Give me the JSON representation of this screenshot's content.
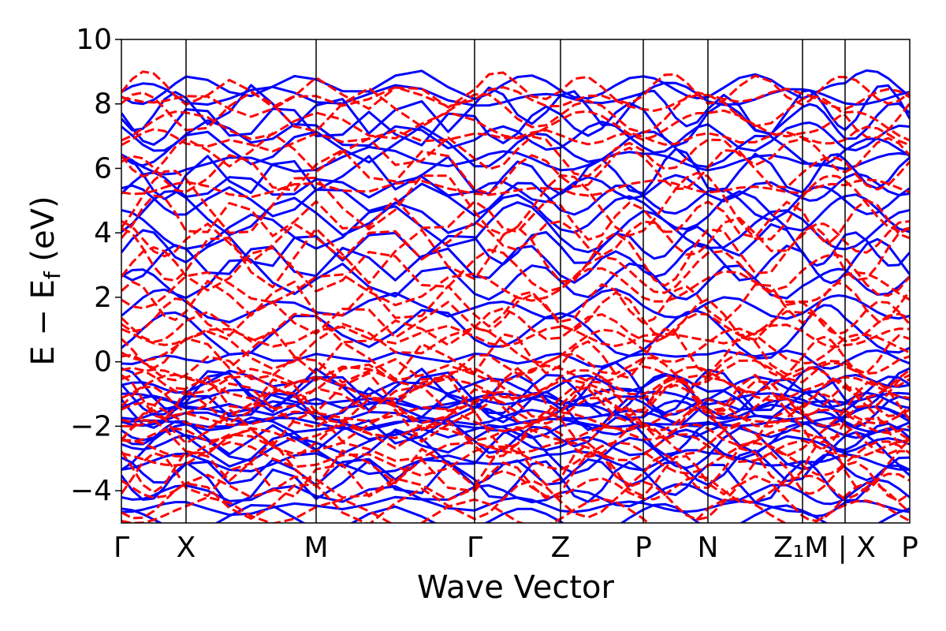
{
  "chart_data": {
    "type": "line",
    "xlabel": "Wave Vector",
    "ylabel": {
      "base": "E − E",
      "subscript": "f",
      "suffix": " (eV)"
    },
    "ylim": [
      -5,
      10
    ],
    "yticks": [
      -4,
      -2,
      0,
      2,
      4,
      6,
      8,
      10
    ],
    "ytick_labels": [
      "−4",
      "−2",
      "0",
      "2",
      "4",
      "6",
      "8",
      "10"
    ],
    "high_symmetry_points": [
      {
        "label": "Γ",
        "x": 0.0
      },
      {
        "label": "X",
        "x": 0.082
      },
      {
        "label": "M",
        "x": 0.247
      },
      {
        "label": "Γ",
        "x": 0.448
      },
      {
        "label": "Z",
        "x": 0.557
      },
      {
        "label": "P",
        "x": 0.662
      },
      {
        "label": "N",
        "x": 0.744
      },
      {
        "label": "Z₁M | X",
        "x": 0.892
      },
      {
        "label": "P",
        "x": 1.0
      }
    ],
    "segment_boundaries": [
      0.0,
      0.082,
      0.247,
      0.448,
      0.557,
      0.662,
      0.744,
      0.864,
      0.918,
      1.0
    ],
    "grid": false,
    "legend": "none",
    "series": [
      {
        "style": "solid",
        "color": "#0000ff",
        "bands": [
          -4.9,
          -4.5,
          -4.1,
          -3.7,
          -3.4,
          -3.1,
          -2.8,
          -2.55,
          -2.3,
          -2.1,
          -1.9,
          -1.75,
          -1.6,
          -1.45,
          -1.3,
          -1.15,
          -1.0,
          -0.85,
          -0.7,
          0.1,
          0.9,
          1.7,
          2.5,
          3.1,
          3.6,
          4.1,
          4.6,
          5.0,
          5.4,
          5.8,
          6.2,
          6.6,
          7.0,
          7.4,
          7.8,
          8.2,
          8.5
        ]
      },
      {
        "style": "dashed",
        "color": "#ff0000",
        "bands": [
          -4.7,
          -4.3,
          -3.9,
          -3.6,
          -3.3,
          -3.0,
          -2.7,
          -2.4,
          -2.2,
          -2.0,
          -1.8,
          -1.6,
          -1.4,
          -1.2,
          -1.0,
          -0.8,
          -0.6,
          -0.4,
          -0.2,
          0.2,
          0.5,
          0.8,
          1.1,
          1.4,
          1.8,
          2.3,
          2.8,
          3.3,
          3.8,
          4.4,
          4.9,
          5.4,
          5.9,
          6.4,
          6.9,
          7.3,
          7.7,
          8.1,
          8.4
        ]
      }
    ]
  }
}
